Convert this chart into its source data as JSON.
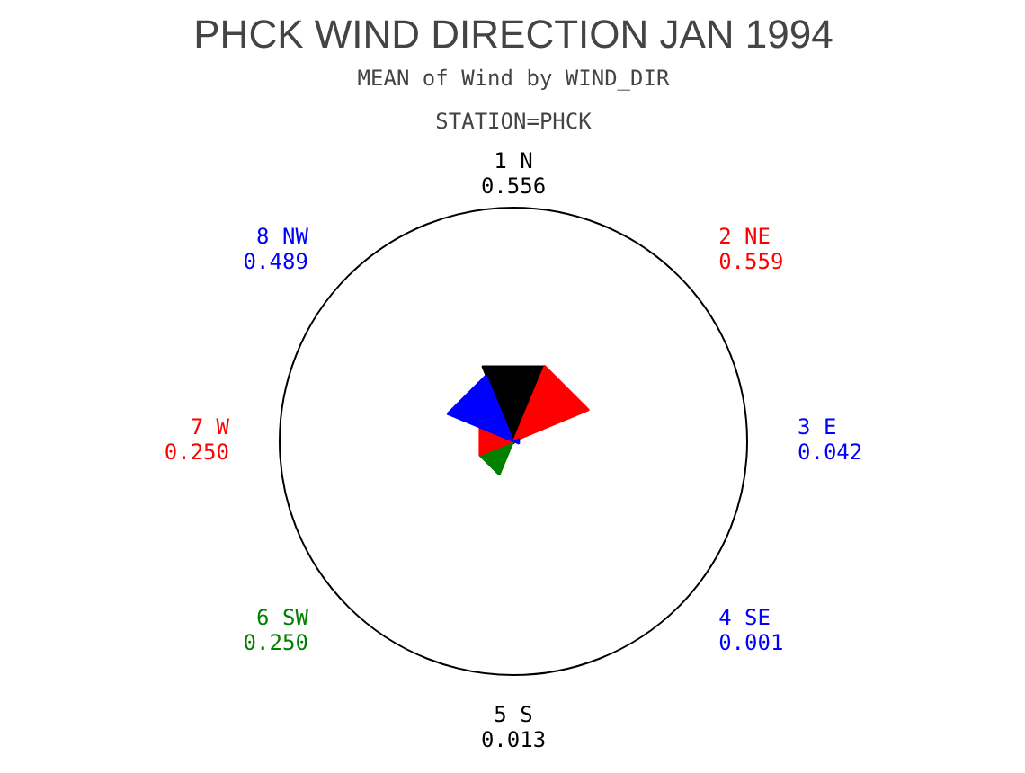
{
  "chart_data": {
    "type": "other",
    "title": "PHCK WIND DIRECTION JAN 1994",
    "subtitle": "MEAN of Wind by WIND_DIR",
    "annotations": [
      "STATION=PHCK"
    ],
    "categories": [
      "1 N",
      "2 NE",
      "3 E",
      "4 SE",
      "5 S",
      "6 SW",
      "7 W",
      "8 NW"
    ],
    "values": [
      0.556,
      0.559,
      0.042,
      0.001,
      0.013,
      0.25,
      0.25,
      0.489
    ],
    "value_labels": [
      "0.556",
      "0.559",
      "0.042",
      "0.001",
      "0.013",
      "0.250",
      "0.250",
      "0.489"
    ],
    "colors": [
      "#000000",
      "#ff0000",
      "#0000ff",
      "#0000ff",
      "#000000",
      "#008000",
      "#ff0000",
      "#0000ff"
    ]
  }
}
